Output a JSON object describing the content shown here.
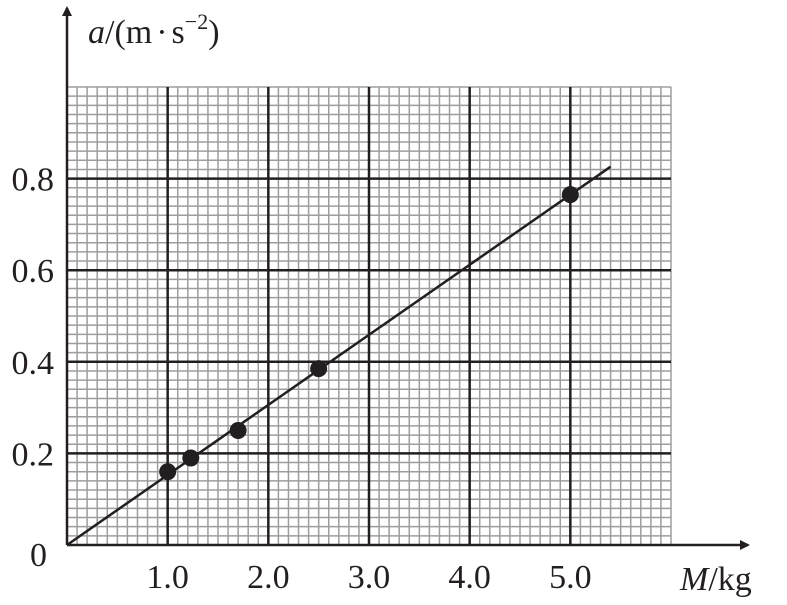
{
  "chart_data": {
    "type": "scatter",
    "ylabel": {
      "var": "a",
      "unit_open": "/(m",
      "dot": "·",
      "unit_s": "s",
      "exp": "−2",
      "close": ")"
    },
    "xlabel": {
      "var": "M",
      "unit": "/kg"
    },
    "origin_label": "0",
    "x_ticks": [
      {
        "value": 1.0,
        "label": "1.0"
      },
      {
        "value": 2.0,
        "label": "2.0"
      },
      {
        "value": 3.0,
        "label": "3.0"
      },
      {
        "value": 4.0,
        "label": "4.0"
      },
      {
        "value": 5.0,
        "label": "5.0"
      }
    ],
    "y_ticks": [
      {
        "value": 0.2,
        "label": "0.2"
      },
      {
        "value": 0.4,
        "label": "0.4"
      },
      {
        "value": 0.6,
        "label": "0.6"
      },
      {
        "value": 0.8,
        "label": "0.8"
      }
    ],
    "xlim": [
      0,
      6.0
    ],
    "ylim": [
      0,
      1.0
    ],
    "grid": true,
    "points": [
      {
        "x": 1.0,
        "y": 0.16
      },
      {
        "x": 1.23,
        "y": 0.19
      },
      {
        "x": 1.7,
        "y": 0.25
      },
      {
        "x": 2.5,
        "y": 0.385
      },
      {
        "x": 5.0,
        "y": 0.765
      }
    ],
    "fit_line": {
      "x": [
        0,
        5.4
      ],
      "y": [
        0,
        0.826
      ]
    },
    "colors": {
      "major_grid": "#231f20",
      "minor_grid": "#9d9d9d",
      "ink": "#231f20"
    }
  }
}
